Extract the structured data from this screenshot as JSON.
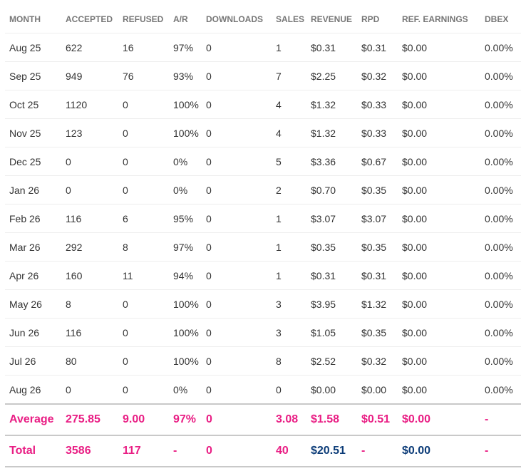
{
  "colors": {
    "header_text": "#777777",
    "cell_text": "#333333",
    "summary_accent": "#e91e84",
    "summary_money": "#0c3c78",
    "row_divider": "#eeeeee",
    "summary_divider": "#c9c9c9"
  },
  "table": {
    "headers": [
      "MONTH",
      "ACCEPTED",
      "REFUSED",
      "A/R",
      "DOWNLOADS",
      "SALES",
      "REVENUE",
      "RPD",
      "REF. EARNINGS",
      "DBEX"
    ],
    "rows": [
      [
        "Aug 25",
        "622",
        "16",
        "97%",
        "0",
        "1",
        "$0.31",
        "$0.31",
        "$0.00",
        "0.00%"
      ],
      [
        "Sep 25",
        "949",
        "76",
        "93%",
        "0",
        "7",
        "$2.25",
        "$0.32",
        "$0.00",
        "0.00%"
      ],
      [
        "Oct 25",
        "1120",
        "0",
        "100%",
        "0",
        "4",
        "$1.32",
        "$0.33",
        "$0.00",
        "0.00%"
      ],
      [
        "Nov 25",
        "123",
        "0",
        "100%",
        "0",
        "4",
        "$1.32",
        "$0.33",
        "$0.00",
        "0.00%"
      ],
      [
        "Dec 25",
        "0",
        "0",
        "0%",
        "0",
        "5",
        "$3.36",
        "$0.67",
        "$0.00",
        "0.00%"
      ],
      [
        "Jan 26",
        "0",
        "0",
        "0%",
        "0",
        "2",
        "$0.70",
        "$0.35",
        "$0.00",
        "0.00%"
      ],
      [
        "Feb 26",
        "116",
        "6",
        "95%",
        "0",
        "1",
        "$3.07",
        "$3.07",
        "$0.00",
        "0.00%"
      ],
      [
        "Mar 26",
        "292",
        "8",
        "97%",
        "0",
        "1",
        "$0.35",
        "$0.35",
        "$0.00",
        "0.00%"
      ],
      [
        "Apr 26",
        "160",
        "11",
        "94%",
        "0",
        "1",
        "$0.31",
        "$0.31",
        "$0.00",
        "0.00%"
      ],
      [
        "May 26",
        "8",
        "0",
        "100%",
        "0",
        "3",
        "$3.95",
        "$1.32",
        "$0.00",
        "0.00%"
      ],
      [
        "Jun 26",
        "116",
        "0",
        "100%",
        "0",
        "3",
        "$1.05",
        "$0.35",
        "$0.00",
        "0.00%"
      ],
      [
        "Jul 26",
        "80",
        "0",
        "100%",
        "0",
        "8",
        "$2.52",
        "$0.32",
        "$0.00",
        "0.00%"
      ],
      [
        "Aug 26",
        "0",
        "0",
        "0%",
        "0",
        "0",
        "$0.00",
        "$0.00",
        "$0.00",
        "0.00%"
      ]
    ],
    "average": [
      "Average",
      "275.85",
      "9.00",
      "97%",
      "0",
      "3.08",
      "$1.58",
      "$0.51",
      "$0.00",
      "-"
    ],
    "total": [
      "Total",
      "3586",
      "117",
      "-",
      "0",
      "40",
      "$20.51",
      "-",
      "$0.00",
      "-"
    ]
  }
}
